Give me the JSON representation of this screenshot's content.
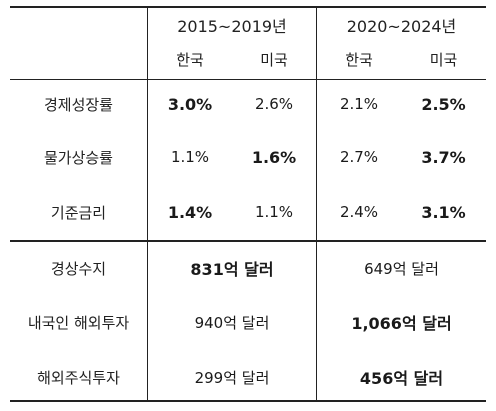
{
  "header": {
    "period1": "2015~2019년",
    "period2": "2020~2024년",
    "korea": "한국",
    "usa": "미국"
  },
  "rows_top": [
    {
      "label": "경제성장률",
      "kr1": "3.0%",
      "us1": "2.6%",
      "kr2": "2.1%",
      "us2": "2.5%"
    },
    {
      "label": "물가상승률",
      "kr1": "1.1%",
      "us1": "1.6%",
      "kr2": "2.7%",
      "us2": "3.7%"
    },
    {
      "label": "기준금리",
      "kr1": "1.4%",
      "us1": "1.1%",
      "kr2": "2.4%",
      "us2": "3.1%"
    }
  ],
  "rows_bottom": [
    {
      "label": "경상수지",
      "p1": "831억 달러",
      "p2": "649억 달러"
    },
    {
      "label": "내국인 해외투자",
      "p1": "940억 달러",
      "p2": "1,066억 달러"
    },
    {
      "label": "해외주식투자",
      "p1": "299억 달러",
      "p2": "456억 달러"
    }
  ]
}
